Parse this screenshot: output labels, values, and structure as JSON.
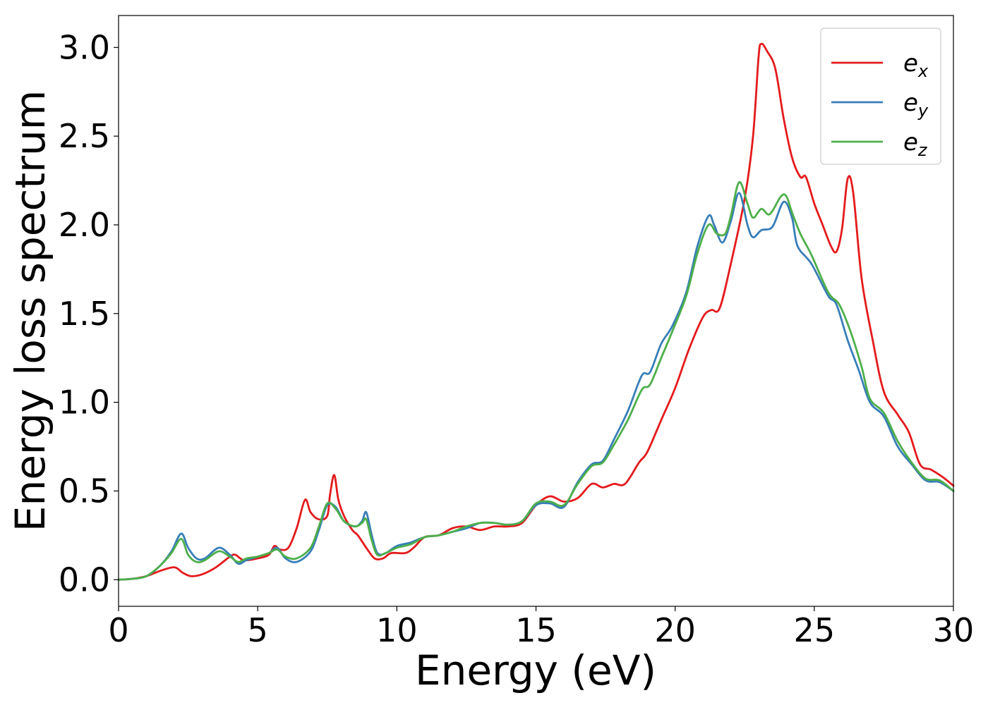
{
  "chart_data": {
    "type": "line",
    "xlabel": "Energy (eV)",
    "ylabel": "Energy loss spectrum",
    "xlim": [
      0,
      30
    ],
    "ylim": [
      -0.15,
      3.18
    ],
    "xticks": [
      0,
      5,
      10,
      15,
      20,
      25,
      30
    ],
    "xtick_labels": [
      "0",
      "5",
      "10",
      "15",
      "20",
      "25",
      "30"
    ],
    "yticks": [
      0.0,
      0.5,
      1.0,
      1.5,
      2.0,
      2.5,
      3.0
    ],
    "ytick_labels": [
      "0.0",
      "0.5",
      "1.0",
      "1.5",
      "2.0",
      "2.5",
      "3.0"
    ],
    "grid": false,
    "legend_position": "top-right",
    "series": [
      {
        "name": "e_x",
        "label_main": "e",
        "label_sub": "x",
        "color": "#e41a1c",
        "points": [
          [
            0,
            0
          ],
          [
            0.5,
            0.005
          ],
          [
            1,
            0.02
          ],
          [
            1.5,
            0.05
          ],
          [
            2,
            0.07
          ],
          [
            2.3,
            0.04
          ],
          [
            2.6,
            0.02
          ],
          [
            3,
            0.03
          ],
          [
            3.5,
            0.07
          ],
          [
            4,
            0.13
          ],
          [
            4.2,
            0.14
          ],
          [
            4.5,
            0.11
          ],
          [
            5,
            0.12
          ],
          [
            5.4,
            0.14
          ],
          [
            5.6,
            0.19
          ],
          [
            5.8,
            0.17
          ],
          [
            6.1,
            0.18
          ],
          [
            6.4,
            0.29
          ],
          [
            6.7,
            0.45
          ],
          [
            6.9,
            0.38
          ],
          [
            7.2,
            0.34
          ],
          [
            7.5,
            0.36
          ],
          [
            7.6,
            0.48
          ],
          [
            7.75,
            0.59
          ],
          [
            7.9,
            0.45
          ],
          [
            8.1,
            0.36
          ],
          [
            8.4,
            0.28
          ],
          [
            8.6,
            0.25
          ],
          [
            8.9,
            0.18
          ],
          [
            9.2,
            0.12
          ],
          [
            9.5,
            0.12
          ],
          [
            9.8,
            0.15
          ],
          [
            10.3,
            0.15
          ],
          [
            10.6,
            0.18
          ],
          [
            11,
            0.24
          ],
          [
            11.5,
            0.25
          ],
          [
            12,
            0.29
          ],
          [
            12.5,
            0.3
          ],
          [
            13,
            0.28
          ],
          [
            13.5,
            0.3
          ],
          [
            14,
            0.3
          ],
          [
            14.5,
            0.32
          ],
          [
            15,
            0.42
          ],
          [
            15.5,
            0.47
          ],
          [
            16,
            0.44
          ],
          [
            16.5,
            0.46
          ],
          [
            17,
            0.54
          ],
          [
            17.4,
            0.52
          ],
          [
            17.8,
            0.54
          ],
          [
            18.2,
            0.54
          ],
          [
            18.7,
            0.66
          ],
          [
            19,
            0.72
          ],
          [
            19.5,
            0.9
          ],
          [
            20,
            1.08
          ],
          [
            20.5,
            1.3
          ],
          [
            21,
            1.48
          ],
          [
            21.3,
            1.52
          ],
          [
            21.6,
            1.53
          ],
          [
            22,
            1.78
          ],
          [
            22.5,
            2.15
          ],
          [
            22.8,
            2.5
          ],
          [
            23.0,
            2.95
          ],
          [
            23.1,
            3.02
          ],
          [
            23.3,
            2.98
          ],
          [
            23.6,
            2.88
          ],
          [
            23.9,
            2.6
          ],
          [
            24.2,
            2.38
          ],
          [
            24.5,
            2.27
          ],
          [
            24.7,
            2.27
          ],
          [
            25,
            2.12
          ],
          [
            25.3,
            2.0
          ],
          [
            25.6,
            1.88
          ],
          [
            25.8,
            1.85
          ],
          [
            26,
            1.98
          ],
          [
            26.2,
            2.26
          ],
          [
            26.4,
            2.18
          ],
          [
            26.7,
            1.7
          ],
          [
            27.1,
            1.35
          ],
          [
            27.5,
            1.06
          ],
          [
            28,
            0.93
          ],
          [
            28.4,
            0.83
          ],
          [
            28.8,
            0.65
          ],
          [
            29.2,
            0.62
          ],
          [
            29.6,
            0.58
          ],
          [
            30,
            0.53
          ]
        ]
      },
      {
        "name": "e_y",
        "label_main": "e",
        "label_sub": "y",
        "color": "#377eb8",
        "points": [
          [
            0,
            0
          ],
          [
            0.5,
            0.005
          ],
          [
            1,
            0.02
          ],
          [
            1.5,
            0.08
          ],
          [
            1.9,
            0.16
          ],
          [
            2.25,
            0.26
          ],
          [
            2.5,
            0.18
          ],
          [
            2.8,
            0.12
          ],
          [
            3.1,
            0.12
          ],
          [
            3.6,
            0.18
          ],
          [
            4.0,
            0.14
          ],
          [
            4.3,
            0.09
          ],
          [
            4.6,
            0.11
          ],
          [
            5.0,
            0.13
          ],
          [
            5.4,
            0.15
          ],
          [
            5.7,
            0.18
          ],
          [
            6.0,
            0.12
          ],
          [
            6.4,
            0.1
          ],
          [
            6.9,
            0.16
          ],
          [
            7.2,
            0.28
          ],
          [
            7.5,
            0.42
          ],
          [
            7.8,
            0.41
          ],
          [
            8.1,
            0.33
          ],
          [
            8.5,
            0.3
          ],
          [
            8.75,
            0.33
          ],
          [
            8.9,
            0.38
          ],
          [
            9.1,
            0.25
          ],
          [
            9.3,
            0.15
          ],
          [
            9.6,
            0.15
          ],
          [
            10,
            0.19
          ],
          [
            10.5,
            0.21
          ],
          [
            11,
            0.24
          ],
          [
            11.5,
            0.25
          ],
          [
            12,
            0.27
          ],
          [
            12.5,
            0.29
          ],
          [
            13,
            0.32
          ],
          [
            13.5,
            0.32
          ],
          [
            14,
            0.31
          ],
          [
            14.5,
            0.33
          ],
          [
            15,
            0.42
          ],
          [
            15.5,
            0.43
          ],
          [
            16,
            0.41
          ],
          [
            16.5,
            0.55
          ],
          [
            17,
            0.65
          ],
          [
            17.4,
            0.67
          ],
          [
            17.8,
            0.79
          ],
          [
            18.3,
            0.95
          ],
          [
            18.8,
            1.15
          ],
          [
            19.1,
            1.17
          ],
          [
            19.5,
            1.33
          ],
          [
            19.9,
            1.43
          ],
          [
            20.4,
            1.62
          ],
          [
            20.8,
            1.88
          ],
          [
            21.2,
            2.05
          ],
          [
            21.4,
            2.0
          ],
          [
            21.7,
            1.9
          ],
          [
            22,
            2.02
          ],
          [
            22.3,
            2.18
          ],
          [
            22.6,
            2.0
          ],
          [
            22.8,
            1.93
          ],
          [
            23.1,
            1.97
          ],
          [
            23.5,
            1.99
          ],
          [
            23.9,
            2.13
          ],
          [
            24.2,
            2.04
          ],
          [
            24.4,
            1.88
          ],
          [
            24.9,
            1.78
          ],
          [
            25.5,
            1.6
          ],
          [
            25.8,
            1.55
          ],
          [
            26.2,
            1.35
          ],
          [
            26.6,
            1.18
          ],
          [
            27.0,
            1.0
          ],
          [
            27.5,
            0.92
          ],
          [
            28.0,
            0.75
          ],
          [
            28.5,
            0.65
          ],
          [
            29.0,
            0.56
          ],
          [
            29.5,
            0.55
          ],
          [
            30,
            0.5
          ]
        ]
      },
      {
        "name": "e_z",
        "label_main": "e",
        "label_sub": "z",
        "color": "#4daf4a",
        "points": [
          [
            0,
            0
          ],
          [
            0.5,
            0.005
          ],
          [
            1,
            0.02
          ],
          [
            1.5,
            0.08
          ],
          [
            1.9,
            0.15
          ],
          [
            2.25,
            0.23
          ],
          [
            2.5,
            0.14
          ],
          [
            2.8,
            0.1
          ],
          [
            3.1,
            0.11
          ],
          [
            3.6,
            0.16
          ],
          [
            4.0,
            0.13
          ],
          [
            4.3,
            0.1
          ],
          [
            4.6,
            0.12
          ],
          [
            5.0,
            0.13
          ],
          [
            5.4,
            0.15
          ],
          [
            5.7,
            0.17
          ],
          [
            6.0,
            0.13
          ],
          [
            6.4,
            0.12
          ],
          [
            6.9,
            0.18
          ],
          [
            7.2,
            0.3
          ],
          [
            7.5,
            0.43
          ],
          [
            7.8,
            0.4
          ],
          [
            8.1,
            0.33
          ],
          [
            8.5,
            0.3
          ],
          [
            8.75,
            0.32
          ],
          [
            8.9,
            0.34
          ],
          [
            9.1,
            0.22
          ],
          [
            9.3,
            0.14
          ],
          [
            9.6,
            0.15
          ],
          [
            10,
            0.18
          ],
          [
            10.5,
            0.2
          ],
          [
            11,
            0.24
          ],
          [
            11.5,
            0.25
          ],
          [
            12,
            0.27
          ],
          [
            12.5,
            0.3
          ],
          [
            13,
            0.32
          ],
          [
            13.5,
            0.32
          ],
          [
            14,
            0.31
          ],
          [
            14.5,
            0.33
          ],
          [
            15,
            0.43
          ],
          [
            15.5,
            0.44
          ],
          [
            16,
            0.42
          ],
          [
            16.5,
            0.54
          ],
          [
            17,
            0.64
          ],
          [
            17.4,
            0.66
          ],
          [
            17.8,
            0.76
          ],
          [
            18.3,
            0.9
          ],
          [
            18.8,
            1.07
          ],
          [
            19.1,
            1.1
          ],
          [
            19.5,
            1.25
          ],
          [
            19.9,
            1.4
          ],
          [
            20.4,
            1.6
          ],
          [
            20.8,
            1.84
          ],
          [
            21.2,
            2.0
          ],
          [
            21.5,
            1.95
          ],
          [
            21.8,
            1.95
          ],
          [
            22.0,
            2.05
          ],
          [
            22.3,
            2.24
          ],
          [
            22.6,
            2.12
          ],
          [
            22.8,
            2.04
          ],
          [
            23.1,
            2.09
          ],
          [
            23.4,
            2.06
          ],
          [
            23.8,
            2.16
          ],
          [
            24.0,
            2.16
          ],
          [
            24.2,
            2.07
          ],
          [
            24.5,
            1.95
          ],
          [
            24.9,
            1.83
          ],
          [
            25.5,
            1.62
          ],
          [
            25.9,
            1.55
          ],
          [
            26.3,
            1.4
          ],
          [
            26.7,
            1.2
          ],
          [
            27.0,
            1.02
          ],
          [
            27.5,
            0.94
          ],
          [
            28.0,
            0.78
          ],
          [
            28.5,
            0.66
          ],
          [
            29.0,
            0.57
          ],
          [
            29.5,
            0.56
          ],
          [
            30,
            0.5
          ]
        ]
      }
    ]
  }
}
